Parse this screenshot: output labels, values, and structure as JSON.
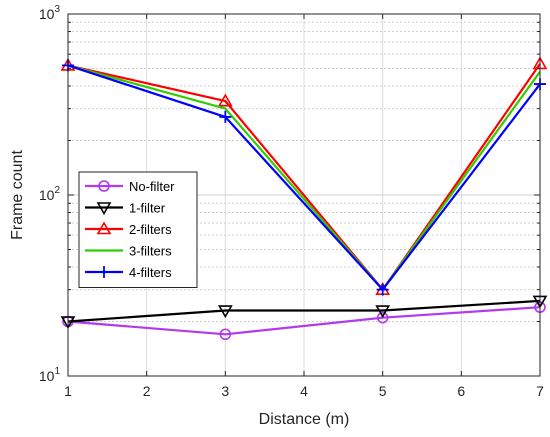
{
  "chart_data": {
    "type": "line",
    "xlabel": "Distance (m)",
    "ylabel": "Frame count",
    "xlim": [
      1,
      7
    ],
    "ylim": [
      10,
      1000
    ],
    "yscale": "log",
    "grid": true,
    "legend_position": "left-middle",
    "x": [
      1,
      3,
      5,
      7
    ],
    "x_ticks": [
      "1",
      "2",
      "3",
      "4",
      "5",
      "6",
      "7"
    ],
    "y_ticks": [
      {
        "value": 10,
        "base": "10",
        "exp": "1"
      },
      {
        "value": 100,
        "base": "10",
        "exp": "2"
      },
      {
        "value": 1000,
        "base": "10",
        "exp": "3"
      }
    ],
    "series": [
      {
        "name": "No-filter",
        "values": [
          20,
          17,
          21,
          24
        ],
        "color": "#b23aee",
        "marker": "circle"
      },
      {
        "name": "1-filter",
        "values": [
          20,
          23,
          23,
          26
        ],
        "color": "#000000",
        "marker": "triangle-down"
      },
      {
        "name": "2-filters",
        "values": [
          520,
          330,
          30,
          530
        ],
        "color": "#ff0000",
        "marker": "triangle-up"
      },
      {
        "name": "3-filters",
        "values": [
          520,
          300,
          30,
          480
        ],
        "color": "#33cc00",
        "marker": "none"
      },
      {
        "name": "4-filters",
        "values": [
          520,
          270,
          30,
          410
        ],
        "color": "#0000ff",
        "marker": "plus"
      }
    ]
  }
}
